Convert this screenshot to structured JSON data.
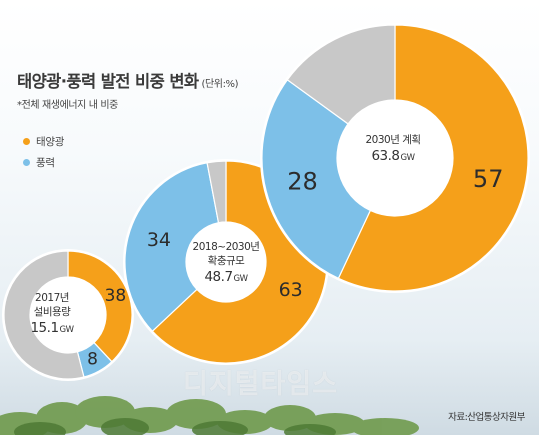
{
  "title": "태양광·풍력 발전 비중 변화",
  "unit": "(단위:%)",
  "subtitle": "*전체 재생에너지 내 비중",
  "source": "자료:산업통상자원부",
  "watermark": "디지털타임스",
  "legend": [
    {
      "label": "태양광",
      "color": "#f5a01a"
    },
    {
      "label": "풍력",
      "color": "#7dc0e8"
    }
  ],
  "colors": {
    "solar": "#f5a01a",
    "wind": "#7dc0e8",
    "other": "#c8c8c8"
  },
  "chart_data": {
    "type": "pie",
    "series": [
      {
        "name": "태양광",
        "values": [
          38,
          63,
          57
        ]
      },
      {
        "name": "풍력",
        "values": [
          8,
          34,
          28
        ]
      }
    ],
    "charts": [
      {
        "line1": "2017년",
        "line2": "설비용량",
        "total": "15.1",
        "total_unit": "GW",
        "solar": 38,
        "wind": 8,
        "solar_label": "38",
        "wind_label": "8"
      },
      {
        "line1": "2018~2030년",
        "line2": "확충규모",
        "total": "48.7",
        "total_unit": "GW",
        "solar": 63,
        "wind": 34,
        "solar_label": "63",
        "wind_label": "34"
      },
      {
        "line1": "2030년 계획",
        "line2": "",
        "total": "63.8",
        "total_unit": "GW",
        "solar": 57,
        "wind": 28,
        "solar_label": "57",
        "wind_label": "28"
      }
    ]
  }
}
